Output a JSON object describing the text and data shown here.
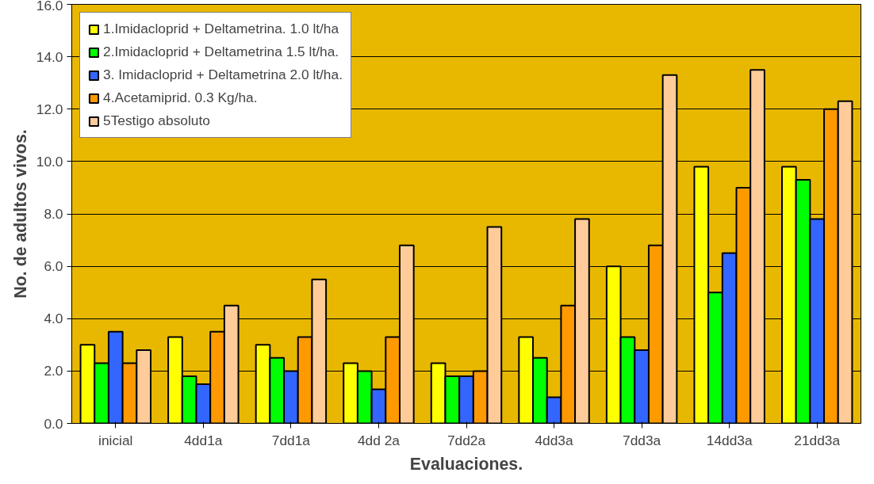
{
  "chart_data": {
    "type": "bar",
    "xlabel": "Evaluaciones.",
    "ylabel": "No. de adultos vivos.",
    "categories": [
      "inicial",
      "4dd1a",
      "7dd1a",
      "4dd 2a",
      "7dd2a",
      "4dd3a",
      "7dd3a",
      "14dd3a",
      "21dd3a"
    ],
    "series": [
      {
        "name": "1.Imidacloprid + Deltametrina. 1.0 lt/ha",
        "color": "#ffff00",
        "values": [
          3.0,
          3.3,
          3.0,
          2.3,
          2.3,
          3.3,
          6.0,
          9.8,
          9.8
        ]
      },
      {
        "name": "2.Imidacloprid + Deltametrina 1.5 lt/ha.",
        "color": "#00ff00",
        "values": [
          2.3,
          1.8,
          2.5,
          2.0,
          1.8,
          2.5,
          3.3,
          5.0,
          9.3
        ]
      },
      {
        "name": "3. Imidacloprid + Deltametrina 2.0 lt/ha.",
        "color": "#3366ff",
        "values": [
          3.5,
          1.5,
          2.0,
          1.3,
          1.8,
          1.0,
          2.8,
          6.5,
          7.8
        ]
      },
      {
        "name": "4.Acetamiprid. 0.3 Kg/ha.",
        "color": "#ff9900",
        "values": [
          2.3,
          3.5,
          3.3,
          3.3,
          2.0,
          4.5,
          6.8,
          9.0,
          12.0
        ]
      },
      {
        "name": "5Testigo absoluto",
        "color": "#ffcc99",
        "values": [
          2.8,
          4.5,
          5.5,
          6.8,
          7.5,
          7.8,
          13.3,
          13.5,
          12.3
        ]
      }
    ],
    "ylim": [
      0,
      16
    ],
    "yticks": [
      {
        "value": 0,
        "label": "0.0"
      },
      {
        "value": 2,
        "label": "2.0"
      },
      {
        "value": 4,
        "label": "4.0"
      },
      {
        "value": 6,
        "label": "6.0"
      },
      {
        "value": 8,
        "label": "8.0"
      },
      {
        "value": 10,
        "label": "10.0"
      },
      {
        "value": 12,
        "label": "12.0"
      },
      {
        "value": 14,
        "label": "14.0"
      },
      {
        "value": 16,
        "label": "16.0"
      }
    ],
    "grid": "y",
    "legend": "top left"
  }
}
